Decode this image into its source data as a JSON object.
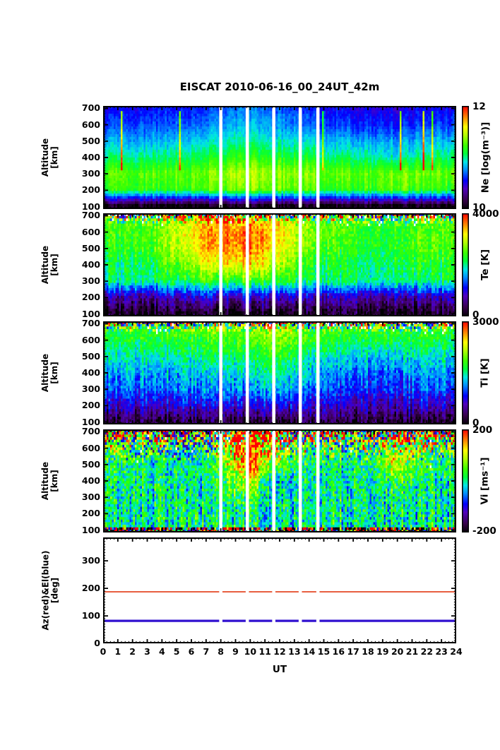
{
  "title": "EISCAT 2010-06-16_00_24UT_42m",
  "x_axis": {
    "label": "UT",
    "range": [
      0,
      24
    ],
    "tick_labels": [
      "0",
      "1",
      "2",
      "3",
      "4",
      "5",
      "6",
      "7",
      "8",
      "9",
      "10",
      "11",
      "12",
      "13",
      "14",
      "15",
      "16",
      "17",
      "18",
      "19",
      "20",
      "21",
      "22",
      "23",
      "24"
    ],
    "minor_step": 0.25
  },
  "gaps_ut": [
    8.0,
    9.8,
    11.6,
    13.4,
    14.6
  ],
  "gap_width_ut": 0.22,
  "colormap": [
    [
      0.0,
      0,
      0,
      0
    ],
    [
      0.09,
      55,
      0,
      75
    ],
    [
      0.2,
      80,
      0,
      190
    ],
    [
      0.28,
      0,
      0,
      255
    ],
    [
      0.38,
      0,
      140,
      255
    ],
    [
      0.46,
      0,
      230,
      230
    ],
    [
      0.54,
      0,
      255,
      60
    ],
    [
      0.62,
      60,
      255,
      0
    ],
    [
      0.72,
      180,
      255,
      0
    ],
    [
      0.8,
      255,
      255,
      0
    ],
    [
      0.89,
      255,
      140,
      0
    ],
    [
      1.0,
      255,
      0,
      0
    ]
  ],
  "chart_data": [
    {
      "type": "heatmap",
      "name": "ne",
      "ylabel_lines": [
        "Altitude",
        "[km]"
      ],
      "y_range": [
        85,
        715
      ],
      "y_ticks": [
        100,
        200,
        300,
        400,
        500,
        600,
        700
      ],
      "y_tick_labels": [
        "100",
        "200",
        "300",
        "400",
        "500",
        "600",
        "700"
      ],
      "y_minor_step": 10,
      "colorbar": {
        "label": "Ne [log(m⁻³)]",
        "min": 10,
        "max": 12,
        "min_label": "10",
        "max_label": "12"
      },
      "grid": {
        "alts": [
          700,
          600,
          500,
          400,
          300,
          200,
          100
        ],
        "times": [
          0,
          2,
          4,
          6,
          8,
          10,
          12,
          14,
          16,
          18,
          20,
          22,
          24
        ],
        "values": [
          [
            10.55,
            10.55,
            10.6,
            10.6,
            10.7,
            10.75,
            10.7,
            10.6,
            10.55,
            10.5,
            10.5,
            10.55,
            10.55
          ],
          [
            10.65,
            10.65,
            10.7,
            10.7,
            10.8,
            10.85,
            10.8,
            10.7,
            10.65,
            10.6,
            10.6,
            10.65,
            10.65
          ],
          [
            10.85,
            10.8,
            10.85,
            10.9,
            10.95,
            11.0,
            10.95,
            10.9,
            10.85,
            10.8,
            10.8,
            10.85,
            10.85
          ],
          [
            11.05,
            11.0,
            11.05,
            11.1,
            11.15,
            11.2,
            11.15,
            11.1,
            11.05,
            11.0,
            10.95,
            11.05,
            11.05
          ],
          [
            11.3,
            11.25,
            11.3,
            11.3,
            11.4,
            11.45,
            11.4,
            11.35,
            11.3,
            11.25,
            11.35,
            11.3,
            11.3
          ],
          [
            11.2,
            11.2,
            11.2,
            11.25,
            11.3,
            11.35,
            11.3,
            11.25,
            11.2,
            11.2,
            11.3,
            11.2,
            11.2
          ],
          [
            10.05,
            10.05,
            10.05,
            10.05,
            10.05,
            10.05,
            10.05,
            10.05,
            10.05,
            10.05,
            10.05,
            10.05,
            10.05
          ]
        ]
      },
      "render": {
        "seed": 11,
        "cell_noise": 0.06,
        "col_noise": 0.1,
        "speckle_top": 0,
        "speckle_amp": 0,
        "dropout": 0,
        "streak_prob": 0.025,
        "streak_amp": 0.85
      }
    },
    {
      "type": "heatmap",
      "name": "te",
      "ylabel_lines": [
        "Altitude",
        "[km]"
      ],
      "y_range": [
        85,
        715
      ],
      "y_ticks": [
        100,
        200,
        300,
        400,
        500,
        600,
        700
      ],
      "y_tick_labels": [
        "100",
        "200",
        "300",
        "400",
        "500",
        "600",
        "700"
      ],
      "y_minor_step": 10,
      "colorbar": {
        "label": "Te [K]",
        "min": 0,
        "max": 4000,
        "min_label": "0",
        "max_label": "4000"
      },
      "grid": {
        "alts": [
          700,
          600,
          500,
          400,
          300,
          200,
          100
        ],
        "times": [
          0,
          2,
          4,
          6,
          8,
          10,
          12,
          14,
          16,
          18,
          20,
          22,
          24
        ],
        "values": [
          [
            2500,
            2500,
            2700,
            3000,
            3300,
            3300,
            3100,
            2700,
            2500,
            2400,
            2400,
            2500,
            2500
          ],
          [
            2450,
            2450,
            2700,
            3200,
            3700,
            3700,
            3300,
            2700,
            2450,
            2350,
            2350,
            2550,
            2450
          ],
          [
            2350,
            2350,
            2600,
            3100,
            3600,
            3700,
            3200,
            2600,
            2350,
            2250,
            2300,
            2550,
            2350
          ],
          [
            2150,
            2150,
            2350,
            2750,
            3200,
            3300,
            2850,
            2350,
            2150,
            2100,
            2150,
            2350,
            2150
          ],
          [
            2050,
            2050,
            2100,
            2250,
            2400,
            2450,
            2350,
            2100,
            2050,
            2000,
            2050,
            2100,
            2050
          ],
          [
            750,
            750,
            780,
            850,
            950,
            950,
            900,
            800,
            750,
            730,
            750,
            780,
            750
          ],
          [
            150,
            150,
            150,
            150,
            150,
            150,
            150,
            150,
            150,
            150,
            150,
            150,
            150
          ]
        ]
      },
      "render": {
        "seed": 22,
        "cell_noise": 260,
        "col_noise": 280,
        "speckle_top": 0.12,
        "speckle_amp": 2200,
        "dropout": 0.06,
        "streak_prob": 0,
        "streak_amp": 0
      }
    },
    {
      "type": "heatmap",
      "name": "ti",
      "ylabel_lines": [
        "Altitude",
        "[km]"
      ],
      "y_range": [
        85,
        715
      ],
      "y_ticks": [
        100,
        200,
        300,
        400,
        500,
        600,
        700
      ],
      "y_tick_labels": [
        "100",
        "200",
        "300",
        "400",
        "500",
        "600",
        "700"
      ],
      "y_minor_step": 10,
      "colorbar": {
        "label": "Ti [K]",
        "min": 0,
        "max": 3000,
        "min_label": "0",
        "max_label": "3000"
      },
      "grid": {
        "alts": [
          700,
          600,
          500,
          400,
          300,
          200,
          100
        ],
        "times": [
          0,
          2,
          4,
          6,
          8,
          10,
          12,
          14,
          16,
          18,
          20,
          22,
          24
        ],
        "values": [
          [
            1850,
            1850,
            1900,
            1950,
            2000,
            2100,
            2250,
            1900,
            1850,
            1850,
            1850,
            1850,
            1850
          ],
          [
            1650,
            1650,
            1700,
            1750,
            1800,
            1900,
            2050,
            1750,
            1650,
            1650,
            1650,
            1700,
            1650
          ],
          [
            1400,
            1400,
            1450,
            1500,
            1550,
            1650,
            1800,
            1450,
            1350,
            1320,
            1330,
            1450,
            1400
          ],
          [
            1180,
            1180,
            1230,
            1280,
            1330,
            1400,
            1550,
            1230,
            1080,
            1060,
            1070,
            1230,
            1180
          ],
          [
            1020,
            1020,
            1070,
            1120,
            1120,
            1180,
            1350,
            1020,
            920,
            900,
            920,
            1070,
            1020
          ],
          [
            680,
            680,
            720,
            720,
            730,
            780,
            830,
            680,
            620,
            610,
            620,
            720,
            680
          ],
          [
            220,
            220,
            220,
            220,
            220,
            220,
            220,
            220,
            220,
            220,
            220,
            220,
            220
          ]
        ]
      },
      "render": {
        "seed": 33,
        "cell_noise": 210,
        "col_noise": 220,
        "speckle_top": 0.12,
        "speckle_amp": 1600,
        "dropout": 0.04,
        "streak_prob": 0,
        "streak_amp": 0
      }
    },
    {
      "type": "heatmap",
      "name": "vi",
      "ylabel_lines": [
        "Altitude",
        "[km]"
      ],
      "y_range": [
        85,
        715
      ],
      "y_ticks": [
        100,
        200,
        300,
        400,
        500,
        600,
        700
      ],
      "y_tick_labels": [
        "100",
        "200",
        "300",
        "400",
        "500",
        "600",
        "700"
      ],
      "y_minor_step": 10,
      "colorbar": {
        "label": "Vi [ms⁻¹]",
        "min": -200,
        "max": 200,
        "min_label": "-200",
        "max_label": "200"
      },
      "grid": {
        "alts": [
          700,
          600,
          500,
          400,
          300,
          200,
          100
        ],
        "times": [
          0,
          2,
          4,
          6,
          8,
          10,
          12,
          14,
          16,
          18,
          20,
          22,
          24
        ],
        "values": [
          [
            80,
            70,
            60,
            50,
            90,
            190,
            130,
            70,
            60,
            60,
            130,
            90,
            80
          ],
          [
            40,
            40,
            10,
            -30,
            70,
            190,
            90,
            30,
            20,
            30,
            110,
            50,
            40
          ],
          [
            10,
            10,
            0,
            -20,
            40,
            170,
            50,
            0,
            0,
            10,
            90,
            20,
            10
          ],
          [
            0,
            0,
            0,
            -10,
            10,
            90,
            -30,
            0,
            0,
            0,
            40,
            10,
            0
          ],
          [
            0,
            0,
            0,
            0,
            0,
            30,
            -10,
            0,
            0,
            0,
            10,
            0,
            0
          ],
          [
            0,
            0,
            0,
            0,
            0,
            0,
            0,
            0,
            0,
            0,
            0,
            0,
            0
          ],
          [
            0,
            0,
            0,
            0,
            0,
            0,
            0,
            0,
            0,
            0,
            0,
            0,
            0
          ]
        ]
      },
      "render": {
        "seed": 44,
        "cell_noise": 55,
        "col_noise": 40,
        "speckle_top": 0.38,
        "speckle_amp": 260,
        "dropout": 0.01,
        "streak_prob": 0,
        "streak_amp": 0,
        "speckle_bottom": 0.035,
        "bottom_amp": 300
      }
    },
    {
      "type": "line",
      "name": "azel",
      "ylabel_lines": [
        "Az(red)&El(blue)",
        "[deg]"
      ],
      "y_range": [
        0,
        385
      ],
      "y_ticks": [
        0,
        100,
        200,
        300
      ],
      "y_tick_labels": [
        "0",
        "100",
        "200",
        "300"
      ],
      "y_minor_step": 10,
      "series": [
        {
          "name": "Az",
          "value": 187.5,
          "color": "#e02800",
          "width": 1.6
        },
        {
          "name": "El",
          "value": 82,
          "color": "#3010d0",
          "width": 3.2
        }
      ]
    }
  ]
}
